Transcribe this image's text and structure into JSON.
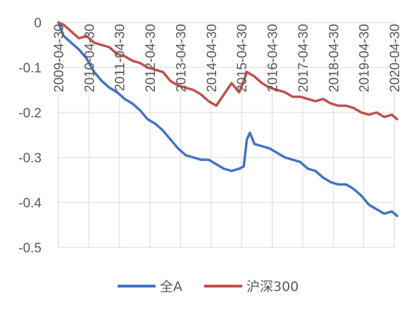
{
  "chart_data": {
    "type": "line",
    "title": "",
    "xlabel": "",
    "ylabel": "",
    "ylim": [
      -0.5,
      0
    ],
    "y_ticks": [
      "0",
      "-0.1",
      "-0.2",
      "-0.3",
      "-0.4",
      "-0.5"
    ],
    "y_tick_values": [
      0,
      -0.1,
      -0.2,
      -0.3,
      -0.4,
      -0.5
    ],
    "x_ticks": [
      "2009-04-30",
      "2010-04-30",
      "2011-04-30",
      "2012-04-30",
      "2013-04-30",
      "2014-04-30",
      "2015-04-30",
      "2016-04-30",
      "2017-04-30",
      "2018-04-30",
      "2019-04-30",
      "2020-04-30"
    ],
    "x_tick_values": [
      2009.33,
      2010.33,
      2011.33,
      2012.33,
      2013.33,
      2014.33,
      2015.33,
      2016.33,
      2017.33,
      2018.33,
      2019.33,
      2020.33
    ],
    "grid": true,
    "legend_position": "bottom",
    "series": [
      {
        "name": "全A",
        "color": "#4472C4",
        "x": [
          2009.33,
          2009.5,
          2009.75,
          2010.0,
          2010.25,
          2010.5,
          2010.75,
          2011.0,
          2011.25,
          2011.5,
          2011.75,
          2012.0,
          2012.25,
          2012.5,
          2012.75,
          2013.0,
          2013.25,
          2013.5,
          2013.75,
          2014.0,
          2014.25,
          2014.5,
          2014.75,
          2015.0,
          2015.25,
          2015.4,
          2015.5,
          2015.6,
          2015.75,
          2016.0,
          2016.25,
          2016.5,
          2016.75,
          2017.0,
          2017.25,
          2017.5,
          2017.75,
          2018.0,
          2018.25,
          2018.5,
          2018.75,
          2019.0,
          2019.25,
          2019.5,
          2019.75,
          2020.0,
          2020.25,
          2020.42
        ],
        "y": [
          0,
          -0.03,
          -0.045,
          -0.06,
          -0.08,
          -0.11,
          -0.13,
          -0.145,
          -0.155,
          -0.17,
          -0.18,
          -0.195,
          -0.215,
          -0.225,
          -0.24,
          -0.26,
          -0.28,
          -0.295,
          -0.3,
          -0.305,
          -0.305,
          -0.315,
          -0.325,
          -0.33,
          -0.325,
          -0.32,
          -0.26,
          -0.245,
          -0.27,
          -0.275,
          -0.28,
          -0.29,
          -0.3,
          -0.305,
          -0.31,
          -0.325,
          -0.33,
          -0.345,
          -0.355,
          -0.36,
          -0.36,
          -0.37,
          -0.385,
          -0.405,
          -0.415,
          -0.425,
          -0.42,
          -0.43
        ]
      },
      {
        "name": "沪深300",
        "color": "#C0504D",
        "x": [
          2009.33,
          2009.5,
          2009.75,
          2010.0,
          2010.25,
          2010.5,
          2010.75,
          2011.0,
          2011.25,
          2011.5,
          2011.75,
          2012.0,
          2012.25,
          2012.5,
          2012.75,
          2013.0,
          2013.25,
          2013.5,
          2013.75,
          2014.0,
          2014.25,
          2014.5,
          2014.75,
          2015.0,
          2015.25,
          2015.4,
          2015.5,
          2015.75,
          2016.0,
          2016.25,
          2016.5,
          2016.75,
          2017.0,
          2017.25,
          2017.5,
          2017.75,
          2018.0,
          2018.25,
          2018.5,
          2018.75,
          2019.0,
          2019.25,
          2019.5,
          2019.75,
          2020.0,
          2020.25,
          2020.42
        ],
        "y": [
          0,
          -0.005,
          -0.02,
          -0.035,
          -0.03,
          -0.045,
          -0.05,
          -0.055,
          -0.07,
          -0.075,
          -0.085,
          -0.09,
          -0.1,
          -0.105,
          -0.11,
          -0.13,
          -0.14,
          -0.145,
          -0.15,
          -0.16,
          -0.175,
          -0.185,
          -0.16,
          -0.135,
          -0.155,
          -0.13,
          -0.11,
          -0.12,
          -0.135,
          -0.145,
          -0.15,
          -0.155,
          -0.165,
          -0.165,
          -0.17,
          -0.175,
          -0.17,
          -0.18,
          -0.185,
          -0.185,
          -0.19,
          -0.2,
          -0.205,
          -0.2,
          -0.21,
          -0.205,
          -0.215
        ]
      }
    ]
  }
}
